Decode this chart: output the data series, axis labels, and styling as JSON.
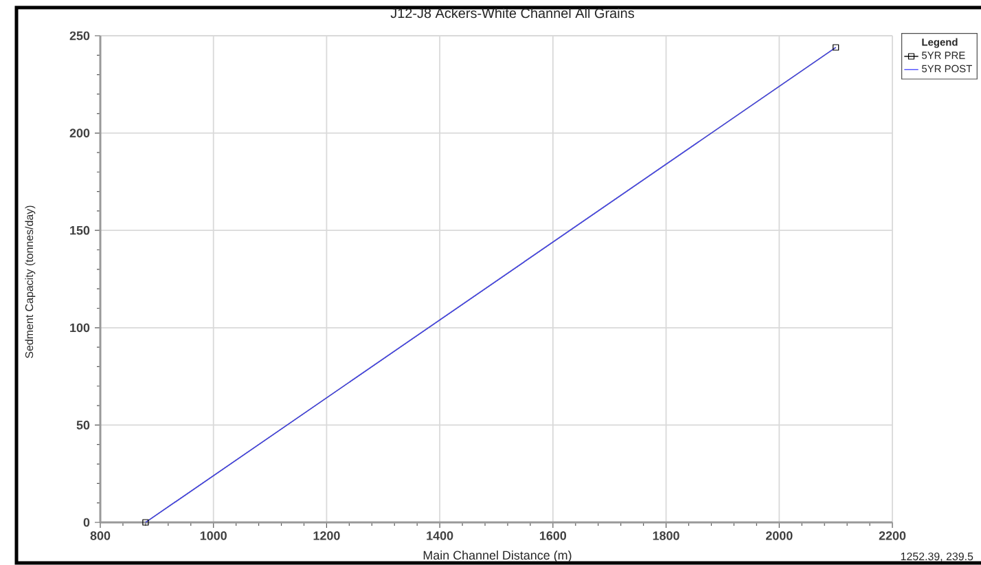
{
  "chart_data": {
    "type": "line",
    "title": "J12-J8 Ackers-White Channel All Grains",
    "xlabel": "Main Channel Distance (m)",
    "ylabel": "Sedment Capacity (tonnes/day)",
    "legend_title": "Legend",
    "x": [
      880,
      2100
    ],
    "series": [
      {
        "name": "5YR PRE",
        "color": "#000000",
        "marker": "square",
        "values": [
          0,
          244
        ]
      },
      {
        "name": "5YR POST",
        "color": "#4b4bff",
        "values": [
          0,
          244
        ]
      }
    ],
    "xlim": [
      800,
      2200
    ],
    "xticks": [
      800,
      1000,
      1200,
      1400,
      1600,
      1800,
      2000,
      2200
    ],
    "ylim": [
      0,
      250
    ],
    "yticks": [
      0,
      50,
      100,
      150,
      200,
      250
    ],
    "grid": true,
    "legend": "top right",
    "annotations": [
      "1252.39, 239.5"
    ]
  }
}
